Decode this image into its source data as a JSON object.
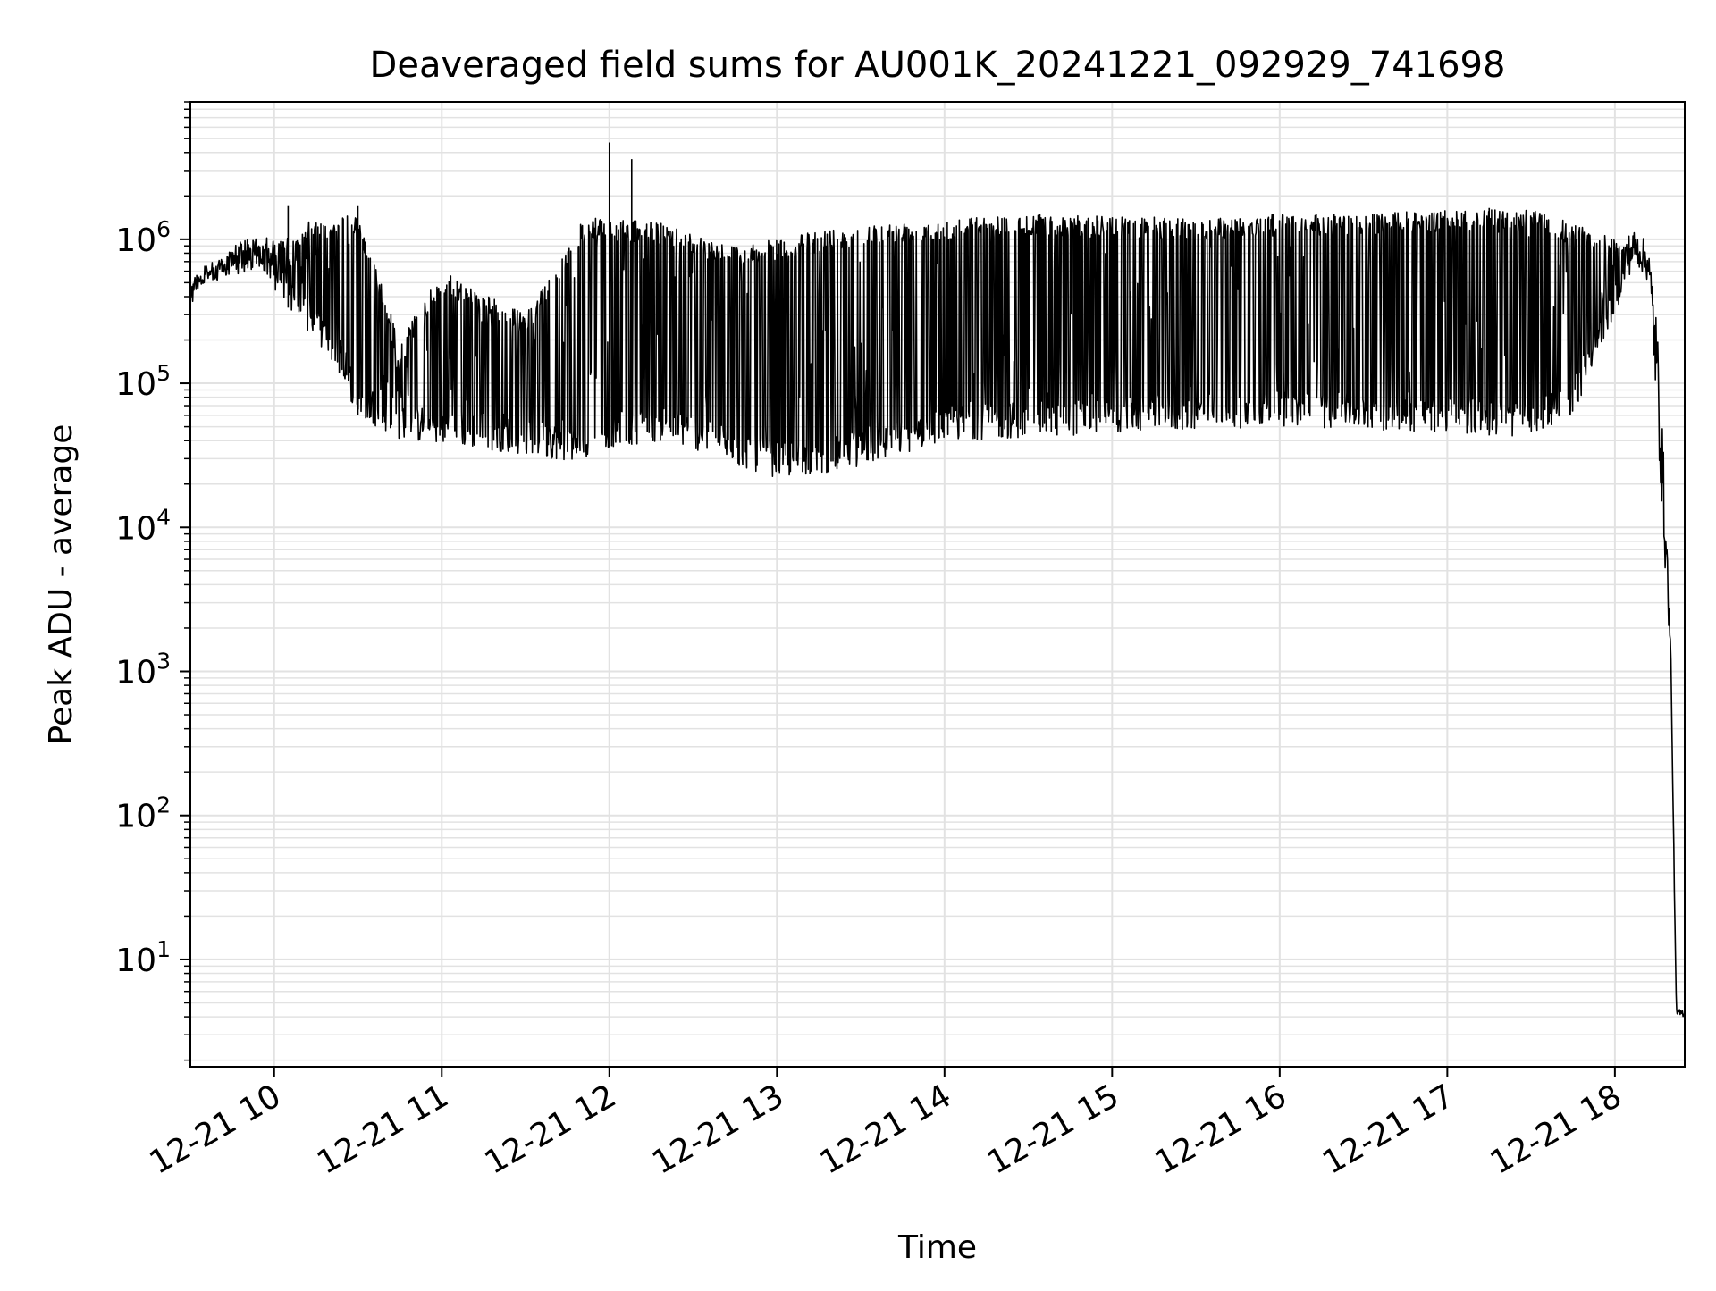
{
  "chart_data": {
    "type": "line",
    "title": "Deaveraged field sums for AU001K_20241221_092929_741698",
    "xlabel": "Time",
    "ylabel": "Peak ADU - average",
    "yscale": "log",
    "ylim": [
      1.8,
      9000000
    ],
    "xlim": [
      "2024-12-21 09:30",
      "2024-12-21 18:25"
    ],
    "grid": true,
    "xticks": [
      "12-21 10",
      "12-21 11",
      "12-21 12",
      "12-21 13",
      "12-21 14",
      "12-21 15",
      "12-21 16",
      "12-21 17",
      "12-21 18"
    ],
    "ytick_exponents": [
      1,
      2,
      3,
      4,
      5,
      6
    ],
    "line_color": "#000000",
    "envelope": {
      "x": [
        "2024-12-21 09:30",
        "2024-12-21 09:35",
        "2024-12-21 09:45",
        "2024-12-21 09:55",
        "2024-12-21 10:00",
        "2024-12-21 10:10",
        "2024-12-21 10:20",
        "2024-12-21 10:30",
        "2024-12-21 10:45",
        "2024-12-21 11:00",
        "2024-12-21 11:30",
        "2024-12-21 11:50",
        "2024-12-21 11:55",
        "2024-12-21 12:20",
        "2024-12-21 12:30",
        "2024-12-21 12:45",
        "2024-12-21 13:00",
        "2024-12-21 13:20",
        "2024-12-21 13:40",
        "2024-12-21 14:00",
        "2024-12-21 14:30",
        "2024-12-21 15:00",
        "2024-12-21 15:30",
        "2024-12-21 16:00",
        "2024-12-21 16:30",
        "2024-12-21 17:00",
        "2024-12-21 17:30",
        "2024-12-21 17:45",
        "2024-12-21 18:00",
        "2024-12-21 18:07",
        "2024-12-21 18:12",
        "2024-12-21 18:15",
        "2024-12-21 18:18",
        "2024-12-21 18:20",
        "2024-12-21 18:22",
        "2024-12-21 18:25"
      ],
      "low": [
        350000,
        500000,
        550000,
        650000,
        450000,
        250000,
        150000,
        60000,
        40000,
        38000,
        32000,
        28000,
        35000,
        40000,
        35000,
        27000,
        22000,
        24000,
        30000,
        40000,
        42000,
        45000,
        48000,
        50000,
        48000,
        45000,
        42000,
        60000,
        300000,
        700000,
        500000,
        60000,
        5000,
        1200,
        4,
        4
      ],
      "high": [
        500000,
        650000,
        900000,
        1100000,
        1000000,
        1300000,
        1400000,
        1500000,
        200000,
        600000,
        300000,
        1300000,
        1400000,
        1300000,
        1100000,
        900000,
        1000000,
        1200000,
        1300000,
        1400000,
        1500000,
        1450000,
        1400000,
        1500000,
        1500000,
        1600000,
        1600000,
        1300000,
        1000000,
        1150000,
        950000,
        300000,
        20000,
        1500,
        4.5,
        4.5
      ]
    },
    "spikes": [
      {
        "x": "2024-12-21 12:00",
        "y": 4700000
      },
      {
        "x": "2024-12-21 12:08",
        "y": 3600000
      },
      {
        "x": "2024-12-21 10:05",
        "y": 1700000
      },
      {
        "x": "2024-12-21 10:30",
        "y": 1700000
      },
      {
        "x": "2024-12-21 17:15",
        "y": 1650000
      }
    ]
  }
}
